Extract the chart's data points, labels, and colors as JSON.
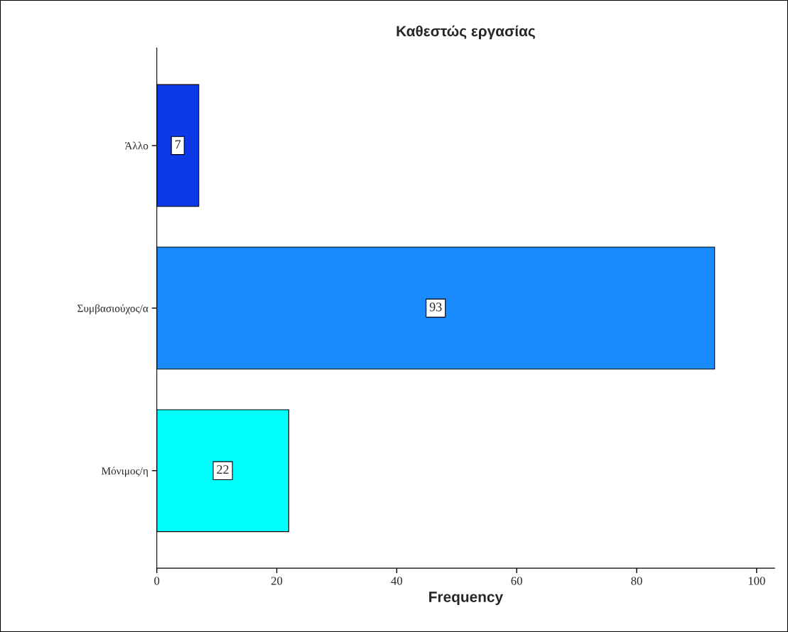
{
  "chart_data": {
    "type": "bar",
    "orientation": "horizontal",
    "title": "Καθεστώς εργασίας",
    "xlabel": "Frequency",
    "categories": [
      "Άλλο",
      "Συμβασιούχος/α",
      "Μόνιμος/η"
    ],
    "values": [
      7,
      93,
      22
    ],
    "colors": [
      "#0d3ae6",
      "#1a8cff",
      "#00ffff"
    ],
    "xlim": [
      0,
      103
    ],
    "xticks": [
      0,
      20,
      40,
      60,
      80,
      100
    ],
    "data_labels": true,
    "grid": false,
    "legend": false
  }
}
